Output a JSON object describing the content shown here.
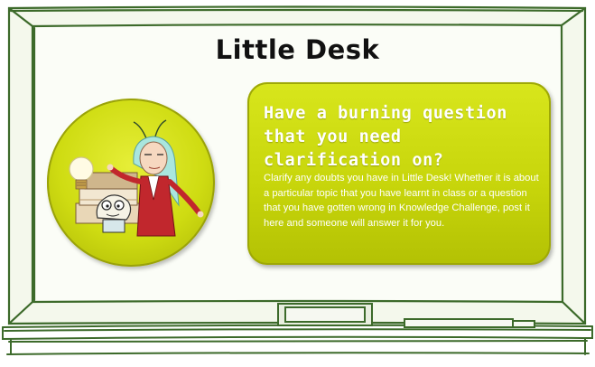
{
  "title": "Little Desk",
  "card": {
    "heading": "Have a burning question that you need clarification on?",
    "body": "Clarify any doubts you have in Little Desk! Whether it is about a particular topic that you have learnt in class or a question that you have gotten wrong in Knowledge Challenge, post it here and someone will answer it for you."
  },
  "colors": {
    "board_outline": "#3c6a2a",
    "accent": "#cad80e",
    "card_text": "#ffffff"
  },
  "icons": [
    "lightbulb-icon",
    "book-stack-icon",
    "teacher-character",
    "student-character"
  ]
}
